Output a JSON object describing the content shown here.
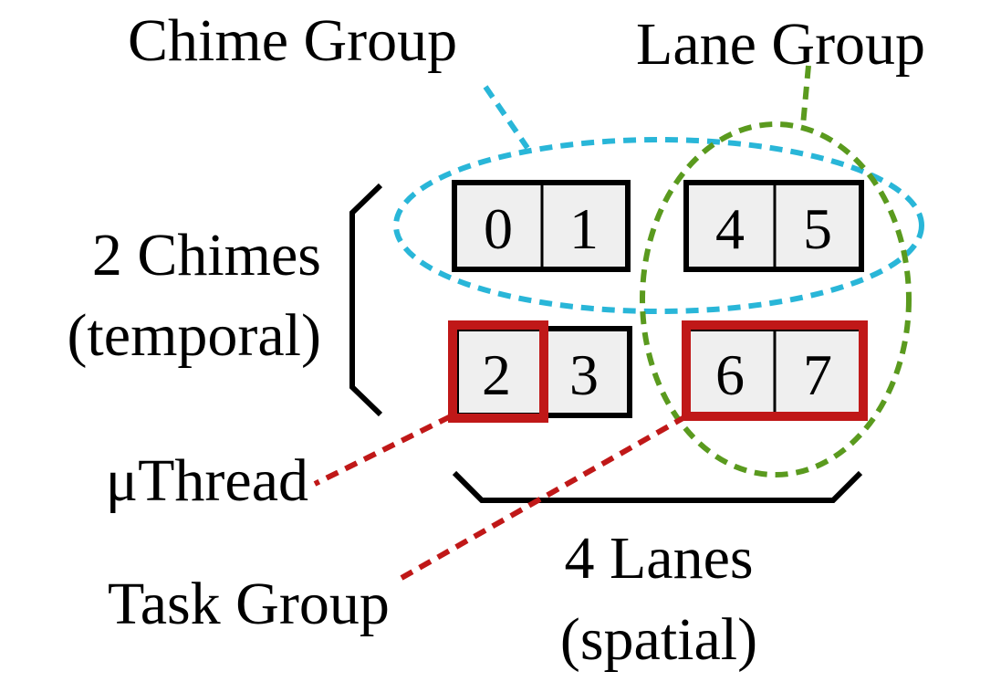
{
  "labels": {
    "chime_group": "Chime Group",
    "lane_group": "Lane Group",
    "chimes_line1": "2 Chimes",
    "chimes_line2": "(temporal)",
    "uthread": "μThread",
    "task_group": "Task Group",
    "lanes_line1": "4 Lanes",
    "lanes_line2": "(spatial)"
  },
  "cells": {
    "c0": "0",
    "c1": "1",
    "c2": "2",
    "c3": "3",
    "c4": "4",
    "c5": "5",
    "c6": "6",
    "c7": "7"
  },
  "colors": {
    "chime_group": "#29b6d8",
    "lane_group": "#5a9a1e",
    "highlight": "#c01818",
    "cell_fill": "#efefef",
    "stroke": "#000000"
  }
}
